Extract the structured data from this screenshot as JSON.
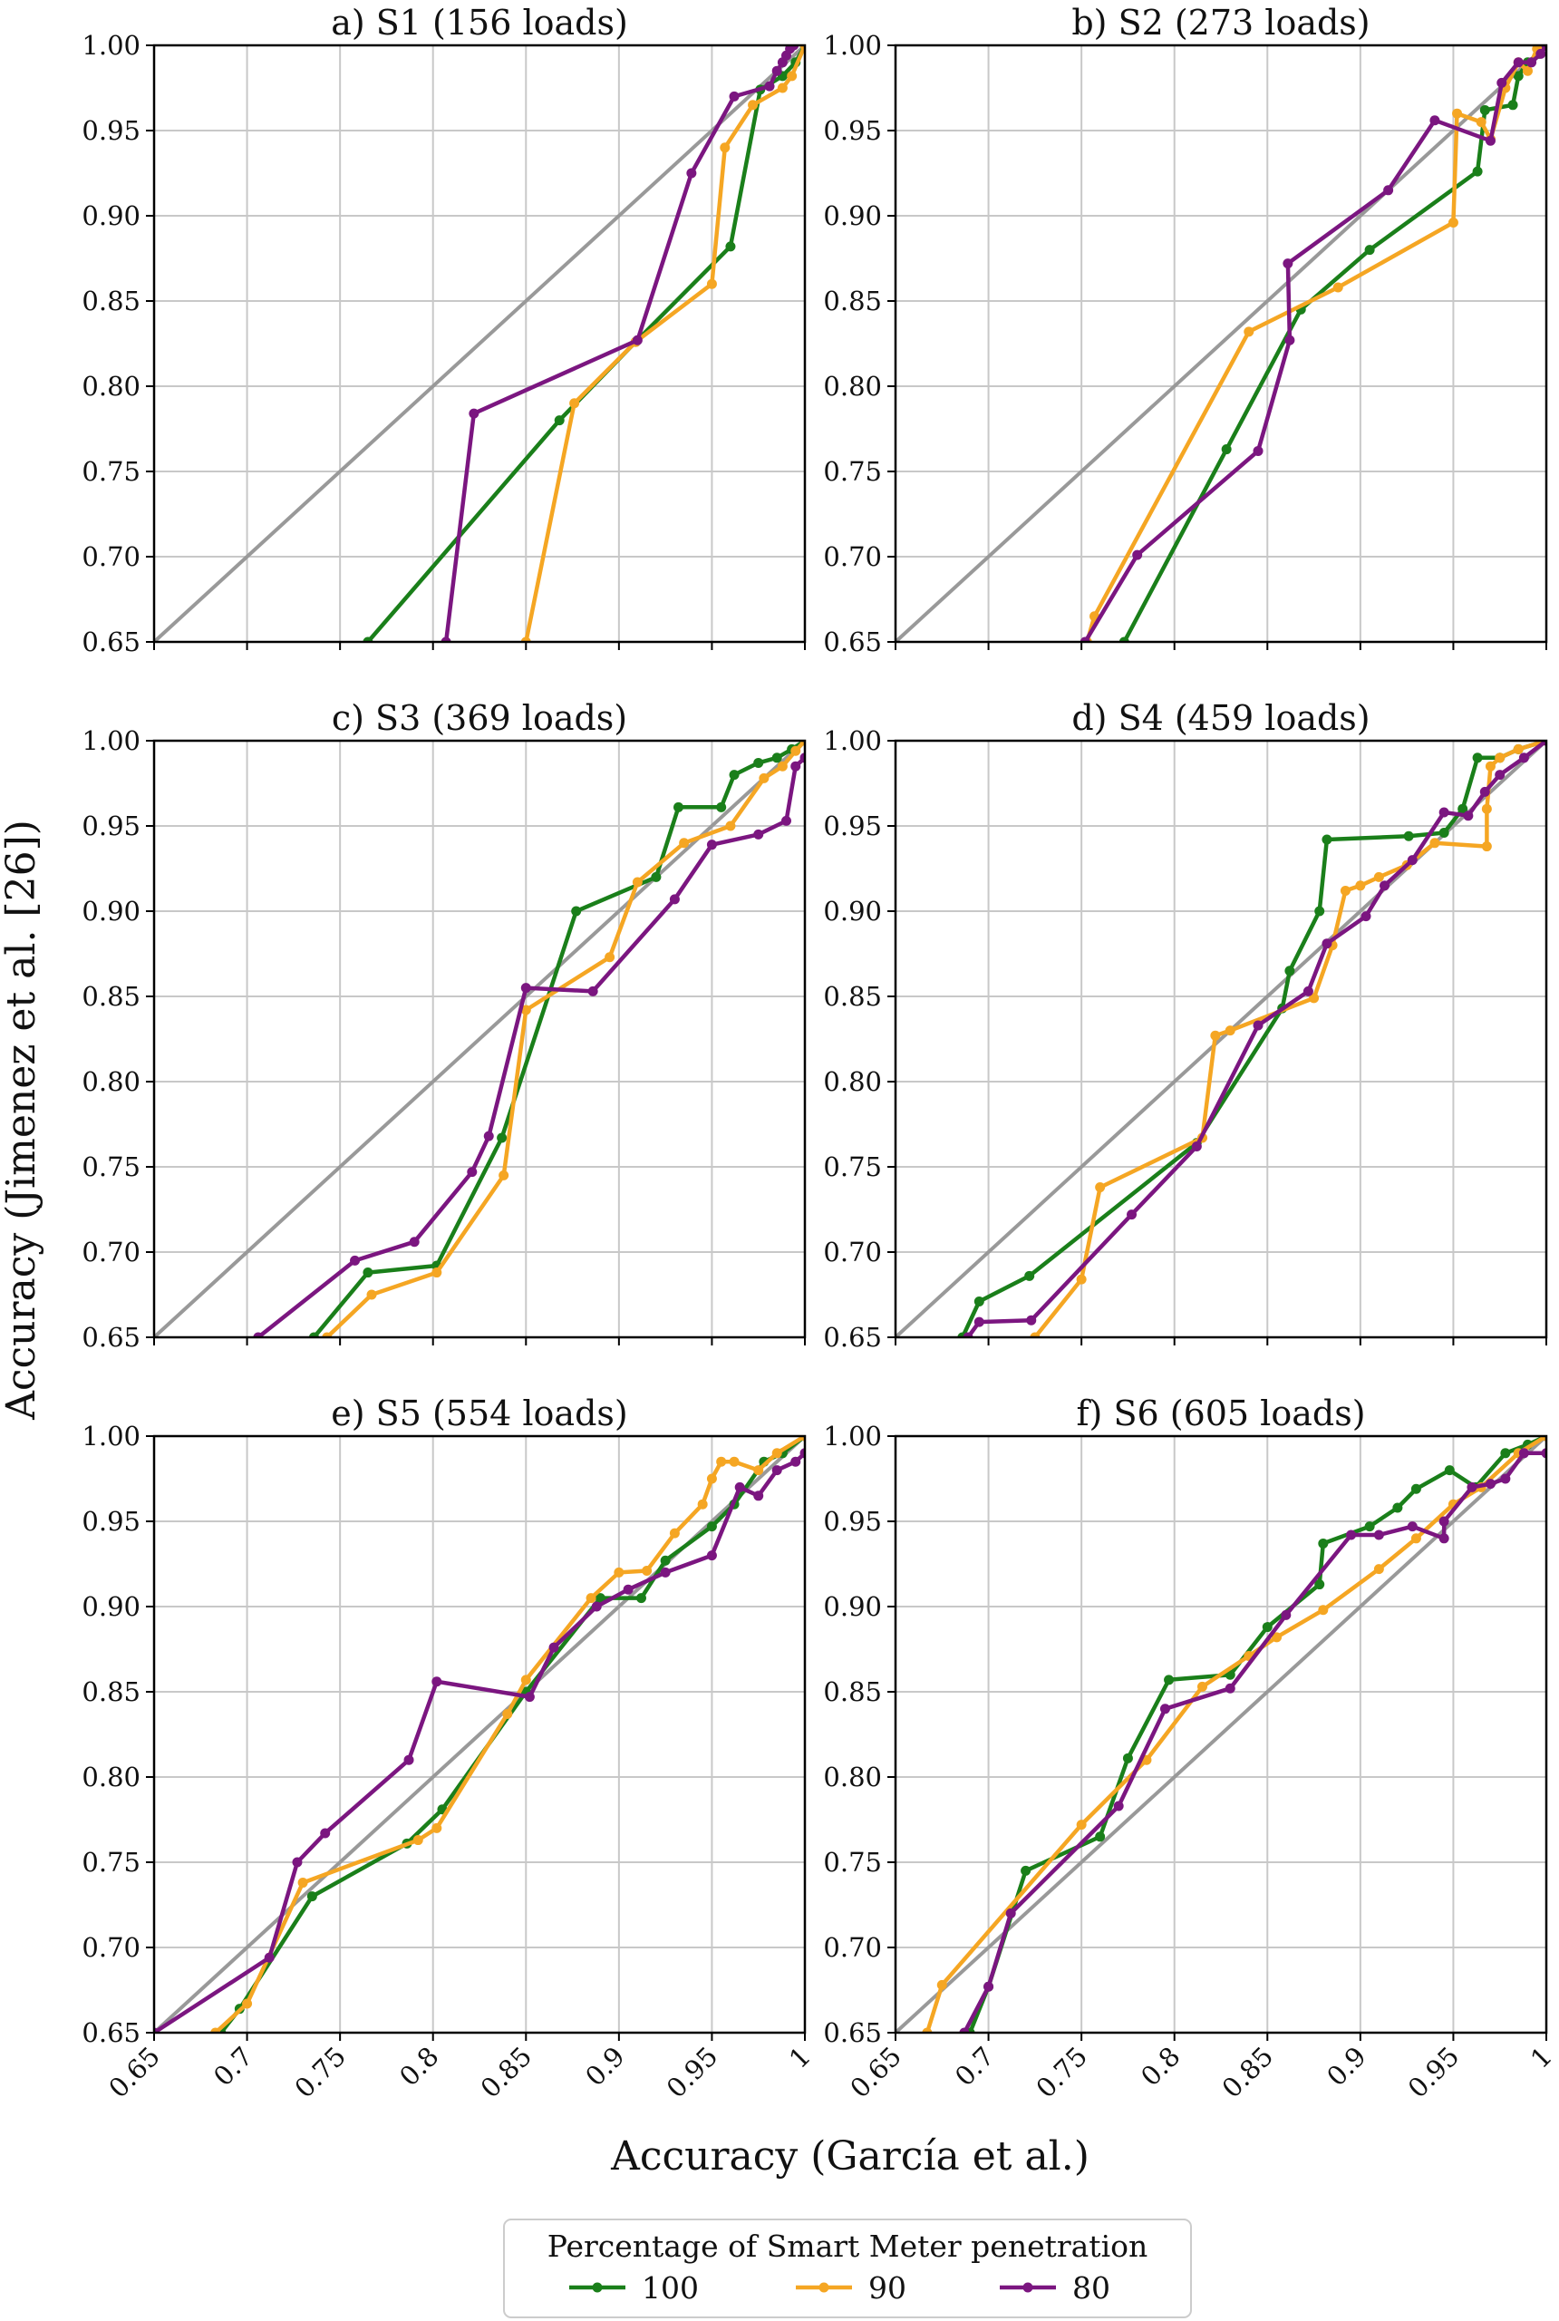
{
  "figure": {
    "ylabel": "Accuracy (Jimenez et al. [26])",
    "xlabel": "Accuracy (García et al.)",
    "legend": {
      "title": "Percentage of Smart Meter penetration",
      "entries": [
        {
          "label": "100",
          "color": "#1a7f1a"
        },
        {
          "label": "90",
          "color": "#f5a623"
        },
        {
          "label": "80",
          "color": "#7b1680"
        }
      ]
    },
    "diagonal_color": "#999999",
    "grid_color": "#c8c8c8"
  },
  "chart_data": [
    {
      "type": "line",
      "title": "a) S1 (156 loads)",
      "xlim": [
        0.65,
        1.0
      ],
      "ylim": [
        0.65,
        1.0
      ],
      "xticks": [
        "0.65",
        "0.7",
        "0.75",
        "0.8",
        "0.85",
        "0.9",
        "0.95",
        "1"
      ],
      "yticks": [
        "0.65",
        "0.70",
        "0.75",
        "0.80",
        "0.85",
        "0.90",
        "0.95",
        "1.00"
      ],
      "series": [
        {
          "name": "100",
          "x": [
            0.765,
            0.868,
            0.909,
            0.96,
            0.976,
            0.988,
            0.995,
            1.0
          ],
          "y": [
            0.65,
            0.78,
            0.826,
            0.882,
            0.974,
            0.982,
            0.99,
            1.0
          ]
        },
        {
          "name": "90",
          "x": [
            0.85,
            0.876,
            0.909,
            0.95,
            0.957,
            0.972,
            0.988,
            0.993,
            1.0
          ],
          "y": [
            0.65,
            0.79,
            0.826,
            0.86,
            0.94,
            0.965,
            0.975,
            0.982,
            1.0
          ]
        },
        {
          "name": "80",
          "x": [
            0.807,
            0.822,
            0.91,
            0.939,
            0.962,
            0.981,
            0.985,
            0.988,
            0.99,
            0.992,
            0.994
          ],
          "y": [
            0.65,
            0.784,
            0.827,
            0.925,
            0.97,
            0.976,
            0.985,
            0.99,
            0.994,
            0.998,
            1.0
          ]
        }
      ]
    },
    {
      "type": "line",
      "title": "b) S2 (273 loads)",
      "xlim": [
        0.65,
        1.0
      ],
      "ylim": [
        0.65,
        1.0
      ],
      "xticks": [
        "0.65",
        "0.7",
        "0.75",
        "0.8",
        "0.85",
        "0.9",
        "0.95",
        "1"
      ],
      "yticks": [
        "0.65",
        "0.70",
        "0.75",
        "0.80",
        "0.85",
        "0.90",
        "0.95",
        "1.00"
      ],
      "series": [
        {
          "name": "100",
          "x": [
            0.773,
            0.828,
            0.868,
            0.905,
            0.963,
            0.967,
            0.982,
            0.985,
            0.99,
            0.996,
            1.0
          ],
          "y": [
            0.65,
            0.763,
            0.845,
            0.88,
            0.926,
            0.962,
            0.965,
            0.982,
            0.99,
            0.995,
            1.0
          ]
        },
        {
          "name": "90",
          "x": [
            0.753,
            0.757,
            0.84,
            0.888,
            0.95,
            0.952,
            0.965,
            0.97,
            0.978,
            0.985,
            0.99,
            0.995,
            1.0
          ],
          "y": [
            0.65,
            0.665,
            0.832,
            0.858,
            0.896,
            0.96,
            0.955,
            0.945,
            0.975,
            0.99,
            0.985,
            0.998,
            1.0
          ]
        },
        {
          "name": "80",
          "x": [
            0.752,
            0.78,
            0.845,
            0.862,
            0.861,
            0.915,
            0.94,
            0.97,
            0.976,
            0.985,
            0.992,
            0.997,
            1.0
          ],
          "y": [
            0.65,
            0.701,
            0.762,
            0.827,
            0.872,
            0.915,
            0.956,
            0.944,
            0.978,
            0.99,
            0.99,
            0.995,
            1.0
          ]
        }
      ]
    },
    {
      "type": "line",
      "title": "c) S3 (369 loads)",
      "xlim": [
        0.65,
        1.0
      ],
      "ylim": [
        0.65,
        1.0
      ],
      "xticks": [
        "0.65",
        "0.7",
        "0.75",
        "0.8",
        "0.85",
        "0.9",
        "0.95",
        "1"
      ],
      "yticks": [
        "0.65",
        "0.70",
        "0.75",
        "0.80",
        "0.85",
        "0.90",
        "0.95",
        "1.00"
      ],
      "series": [
        {
          "name": "100",
          "x": [
            0.736,
            0.765,
            0.802,
            0.837,
            0.877,
            0.92,
            0.932,
            0.955,
            0.962,
            0.975,
            0.985,
            0.993,
            1.0
          ],
          "y": [
            0.65,
            0.688,
            0.692,
            0.767,
            0.9,
            0.92,
            0.961,
            0.961,
            0.98,
            0.987,
            0.99,
            0.995,
            1.0
          ]
        },
        {
          "name": "90",
          "x": [
            0.743,
            0.767,
            0.802,
            0.838,
            0.85,
            0.895,
            0.91,
            0.935,
            0.96,
            0.978,
            0.988,
            0.995,
            1.0
          ],
          "y": [
            0.65,
            0.675,
            0.688,
            0.745,
            0.842,
            0.873,
            0.917,
            0.94,
            0.95,
            0.978,
            0.985,
            0.994,
            1.0
          ]
        },
        {
          "name": "80",
          "x": [
            0.706,
            0.758,
            0.79,
            0.821,
            0.83,
            0.85,
            0.886,
            0.93,
            0.95,
            0.975,
            0.99,
            0.995,
            1.0
          ],
          "y": [
            0.65,
            0.695,
            0.706,
            0.747,
            0.768,
            0.855,
            0.853,
            0.907,
            0.939,
            0.945,
            0.953,
            0.985,
            0.99
          ]
        }
      ]
    },
    {
      "type": "line",
      "title": "d) S4 (459 loads)",
      "xlim": [
        0.65,
        1.0
      ],
      "ylim": [
        0.65,
        1.0
      ],
      "xticks": [
        "0.65",
        "0.7",
        "0.75",
        "0.8",
        "0.85",
        "0.9",
        "0.95",
        "1"
      ],
      "yticks": [
        "0.65",
        "0.70",
        "0.75",
        "0.80",
        "0.85",
        "0.90",
        "0.95",
        "1.00"
      ],
      "series": [
        {
          "name": "100",
          "x": [
            0.686,
            0.695,
            0.722,
            0.812,
            0.858,
            0.862,
            0.878,
            0.882,
            0.926,
            0.945,
            0.955,
            0.963,
            0.975,
            0.985,
            1.0
          ],
          "y": [
            0.65,
            0.671,
            0.686,
            0.764,
            0.843,
            0.865,
            0.9,
            0.942,
            0.944,
            0.946,
            0.96,
            0.99,
            0.99,
            0.995,
            1.0
          ]
        },
        {
          "name": "90",
          "x": [
            0.725,
            0.75,
            0.76,
            0.815,
            0.822,
            0.83,
            0.875,
            0.885,
            0.892,
            0.9,
            0.91,
            0.925,
            0.94,
            0.968,
            0.968,
            0.97,
            0.975,
            0.985,
            1.0
          ],
          "y": [
            0.65,
            0.684,
            0.738,
            0.767,
            0.827,
            0.83,
            0.849,
            0.88,
            0.912,
            0.915,
            0.92,
            0.927,
            0.94,
            0.938,
            0.96,
            0.985,
            0.99,
            0.995,
            1.0
          ]
        },
        {
          "name": "80",
          "x": [
            0.689,
            0.695,
            0.723,
            0.777,
            0.812,
            0.845,
            0.872,
            0.882,
            0.903,
            0.913,
            0.928,
            0.945,
            0.958,
            0.967,
            0.975,
            0.988,
            1.0
          ],
          "y": [
            0.65,
            0.659,
            0.66,
            0.722,
            0.762,
            0.833,
            0.853,
            0.881,
            0.897,
            0.915,
            0.93,
            0.958,
            0.956,
            0.97,
            0.98,
            0.99,
            1.0
          ]
        }
      ]
    },
    {
      "type": "line",
      "title": "e) S5 (554 loads)",
      "xlim": [
        0.65,
        1.0
      ],
      "ylim": [
        0.65,
        1.0
      ],
      "xticks": [
        "0.65",
        "0.7",
        "0.75",
        "0.8",
        "0.85",
        "0.9",
        "0.95",
        "1"
      ],
      "yticks": [
        "0.65",
        "0.70",
        "0.75",
        "0.80",
        "0.85",
        "0.90",
        "0.95",
        "1.00"
      ],
      "series": [
        {
          "name": "100",
          "x": [
            0.686,
            0.696,
            0.735,
            0.786,
            0.805,
            0.85,
            0.89,
            0.912,
            0.925,
            0.95,
            0.962,
            0.978,
            0.988,
            1.0
          ],
          "y": [
            0.65,
            0.664,
            0.73,
            0.761,
            0.781,
            0.85,
            0.905,
            0.905,
            0.927,
            0.947,
            0.96,
            0.985,
            0.99,
            1.0
          ]
        },
        {
          "name": "90",
          "x": [
            0.683,
            0.7,
            0.73,
            0.792,
            0.802,
            0.84,
            0.85,
            0.885,
            0.9,
            0.915,
            0.93,
            0.945,
            0.95,
            0.955,
            0.962,
            0.975,
            0.985,
            1.0
          ],
          "y": [
            0.65,
            0.667,
            0.738,
            0.763,
            0.77,
            0.837,
            0.857,
            0.905,
            0.92,
            0.921,
            0.943,
            0.96,
            0.975,
            0.985,
            0.985,
            0.98,
            0.99,
            1.0
          ]
        },
        {
          "name": "80",
          "x": [
            0.65,
            0.712,
            0.727,
            0.742,
            0.787,
            0.802,
            0.852,
            0.865,
            0.888,
            0.905,
            0.925,
            0.95,
            0.965,
            0.975,
            0.985,
            0.995,
            1.0
          ],
          "y": [
            0.65,
            0.694,
            0.75,
            0.767,
            0.81,
            0.856,
            0.847,
            0.876,
            0.9,
            0.91,
            0.92,
            0.93,
            0.97,
            0.965,
            0.98,
            0.985,
            0.99
          ]
        }
      ]
    },
    {
      "type": "line",
      "title": "f) S6 (605 loads)",
      "xlim": [
        0.65,
        1.0
      ],
      "ylim": [
        0.65,
        1.0
      ],
      "xticks": [
        "0.65",
        "0.7",
        "0.75",
        "0.8",
        "0.85",
        "0.9",
        "0.95",
        "1"
      ],
      "yticks": [
        "0.65",
        "0.70",
        "0.75",
        "0.80",
        "0.85",
        "0.90",
        "0.95",
        "1.00"
      ],
      "series": [
        {
          "name": "100",
          "x": [
            0.69,
            0.7,
            0.72,
            0.76,
            0.775,
            0.797,
            0.83,
            0.85,
            0.878,
            0.88,
            0.905,
            0.92,
            0.93,
            0.948,
            0.962,
            0.978,
            0.99,
            1.0
          ],
          "y": [
            0.65,
            0.677,
            0.745,
            0.765,
            0.811,
            0.857,
            0.86,
            0.888,
            0.913,
            0.937,
            0.947,
            0.958,
            0.969,
            0.98,
            0.97,
            0.99,
            0.995,
            1.0
          ]
        },
        {
          "name": "90",
          "x": [
            0.667,
            0.675,
            0.75,
            0.785,
            0.815,
            0.84,
            0.855,
            0.88,
            0.91,
            0.93,
            0.95,
            0.965,
            0.985,
            1.0
          ],
          "y": [
            0.65,
            0.678,
            0.772,
            0.81,
            0.853,
            0.871,
            0.882,
            0.898,
            0.922,
            0.94,
            0.96,
            0.97,
            0.99,
            1.0
          ]
        },
        {
          "name": "80",
          "x": [
            0.687,
            0.7,
            0.712,
            0.77,
            0.795,
            0.83,
            0.86,
            0.895,
            0.91,
            0.928,
            0.945,
            0.945,
            0.96,
            0.97,
            0.978,
            0.988,
            1.0
          ],
          "y": [
            0.65,
            0.677,
            0.72,
            0.783,
            0.84,
            0.852,
            0.895,
            0.942,
            0.942,
            0.947,
            0.94,
            0.95,
            0.97,
            0.972,
            0.975,
            0.99,
            0.99
          ]
        }
      ]
    }
  ]
}
